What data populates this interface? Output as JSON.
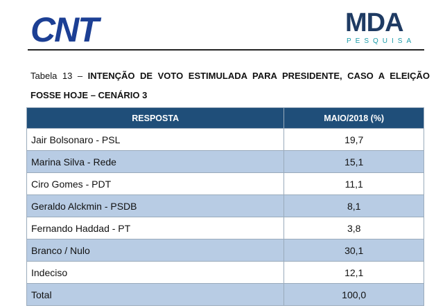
{
  "header": {
    "left_logo": "CNT",
    "right_logo": "MDA",
    "right_logo_sub": "PESQUISA"
  },
  "caption": {
    "prefix": "Tabela 13 –",
    "title": "INTENÇÃO DE VOTO ESTIMULADA PARA PRESIDENTE, CASO A ELEIÇÃO FOSSE HOJE – CENÁRIO 3"
  },
  "table": {
    "columns": [
      "RESPOSTA",
      "MAIO/2018 (%)"
    ],
    "rows": [
      [
        "Jair Bolsonaro - PSL",
        "19,7"
      ],
      [
        "Marina Silva - Rede",
        "15,1"
      ],
      [
        "Ciro Gomes - PDT",
        "11,1"
      ],
      [
        "Geraldo Alckmin - PSDB",
        "8,1"
      ],
      [
        "Fernando Haddad - PT",
        "3,8"
      ],
      [
        "Branco / Nulo",
        "30,1"
      ],
      [
        "Indeciso",
        "12,1"
      ],
      [
        "Total",
        "100,0"
      ]
    ]
  }
}
